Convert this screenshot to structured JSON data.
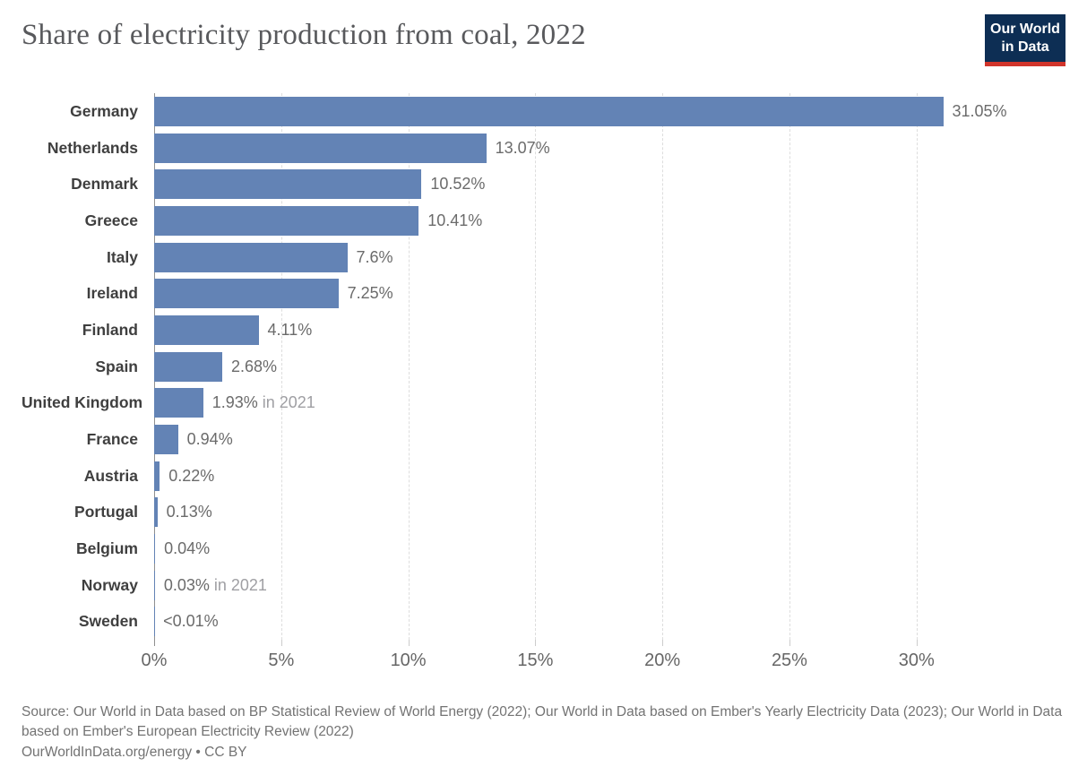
{
  "header": {
    "title": "Share of electricity production from coal, 2022",
    "logo": {
      "line1": "Our World",
      "line2": "in Data"
    }
  },
  "chart_data": {
    "type": "bar",
    "orientation": "horizontal",
    "title": "Share of electricity production from coal, 2022",
    "xlabel": "",
    "ylabel": "",
    "unit": "%",
    "categories": [
      "Germany",
      "Netherlands",
      "Denmark",
      "Greece",
      "Italy",
      "Ireland",
      "Finland",
      "Spain",
      "United Kingdom",
      "France",
      "Austria",
      "Portugal",
      "Belgium",
      "Norway",
      "Sweden"
    ],
    "values": [
      31.05,
      13.07,
      10.52,
      10.41,
      7.6,
      7.25,
      4.11,
      2.68,
      1.93,
      0.94,
      0.22,
      0.13,
      0.04,
      0.03,
      0.005
    ],
    "value_labels": [
      "31.05%",
      "13.07%",
      "10.52%",
      "10.41%",
      "7.6%",
      "7.25%",
      "4.11%",
      "2.68%",
      "1.93%",
      "0.94%",
      "0.22%",
      "0.13%",
      "0.04%",
      "0.03%",
      "<0.01%"
    ],
    "notes": [
      "",
      "",
      "",
      "",
      "",
      "",
      "",
      "",
      "in 2021",
      "",
      "",
      "",
      "",
      "in 2021",
      ""
    ],
    "x_ticks": [
      {
        "value": 0,
        "label": "0%"
      },
      {
        "value": 5,
        "label": "5%"
      },
      {
        "value": 10,
        "label": "10%"
      },
      {
        "value": 15,
        "label": "15%"
      },
      {
        "value": 20,
        "label": "20%"
      },
      {
        "value": 25,
        "label": "25%"
      },
      {
        "value": 30,
        "label": "30%"
      }
    ],
    "xlim": [
      0,
      33.5
    ],
    "grid": "vertical-dashed",
    "legend": "none"
  },
  "colors": {
    "bar": "#6383b5",
    "logo_navy": "#0d2e54",
    "logo_red": "#d1342b"
  },
  "footer": {
    "source_line": "Source: Our World in Data based on BP Statistical Review of World Energy (2022); Our World in Data based on Ember's Yearly Electricity Data (2023); Our World in Data based on Ember's European Electricity Review (2022)",
    "link_line": "OurWorldInData.org/energy • CC BY"
  }
}
